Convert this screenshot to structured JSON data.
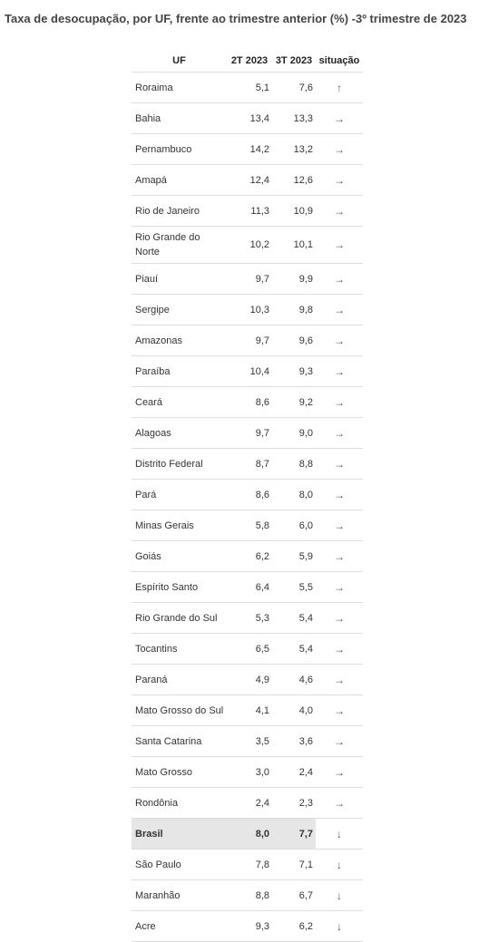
{
  "header": {
    "title": "Taxa de desocupação, por UF, frente ao trimestre anterior (%) -3º trimestre de 2023"
  },
  "table": {
    "headers": [
      "UF",
      "2T 2023",
      "3T 2023",
      "situação"
    ],
    "rows": [
      {
        "cells": [
          "Roraima",
          "5,1",
          "7,6",
          "↑"
        ]
      },
      {
        "cells": [
          "Bahia",
          "13,4",
          "13,3",
          "→"
        ]
      },
      {
        "cells": [
          "Pernambuco",
          "14,2",
          "13,2",
          "→"
        ]
      },
      {
        "cells": [
          "Amapá",
          "12,4",
          "12,6",
          "→"
        ]
      },
      {
        "cells": [
          "Rio de Janeiro",
          "11,3",
          "10,9",
          "→"
        ]
      },
      {
        "cells": [
          "Rio Grande do Norte",
          "10,2",
          "10,1",
          "→"
        ]
      },
      {
        "cells": [
          "Piauí",
          "9,7",
          "9,9",
          "→"
        ]
      },
      {
        "cells": [
          "Sergipe",
          "10,3",
          "9,8",
          "→"
        ]
      },
      {
        "cells": [
          "Amazonas",
          "9,7",
          "9,6",
          "→"
        ]
      },
      {
        "cells": [
          "Paraíba",
          "10,4",
          "9,3",
          "→"
        ]
      },
      {
        "cells": [
          "Ceará",
          "8,6",
          "9,2",
          "→"
        ]
      },
      {
        "cells": [
          "Alagoas",
          "9,7",
          "9,0",
          "→"
        ]
      },
      {
        "cells": [
          "Distrito Federal",
          "8,7",
          "8,8",
          "→"
        ]
      },
      {
        "cells": [
          "Pará",
          "8,6",
          "8,0",
          "→"
        ]
      },
      {
        "cells": [
          "Minas Gerais",
          "5,8",
          "6,0",
          "→"
        ]
      },
      {
        "cells": [
          "Goiás",
          "6,2",
          "5,9",
          "→"
        ]
      },
      {
        "cells": [
          "Espírito Santo",
          "6,4",
          "5,5",
          "→"
        ]
      },
      {
        "cells": [
          "Rio Grande do Sul",
          "5,3",
          "5,4",
          "→"
        ]
      },
      {
        "cells": [
          "Tocantins",
          "6,5",
          "5,4",
          "→"
        ]
      },
      {
        "cells": [
          "Paraná",
          "4,9",
          "4,6",
          "→"
        ]
      },
      {
        "cells": [
          "Mato Grosso do Sul",
          "4,1",
          "4,0",
          "→"
        ]
      },
      {
        "cells": [
          "Santa Catarina",
          "3,5",
          "3,6",
          "→"
        ]
      },
      {
        "cells": [
          "Mato Grosso",
          "3,0",
          "2,4",
          "→"
        ]
      },
      {
        "cells": [
          "Rondônia",
          "2,4",
          "2,3",
          "→"
        ]
      },
      {
        "cells": [
          "Brasil",
          "8,0",
          "7,7",
          "↓"
        ],
        "highlighted": true
      },
      {
        "cells": [
          "São Paulo",
          "7,8",
          "7,1",
          "↓"
        ]
      },
      {
        "cells": [
          "Maranhão",
          "8,8",
          "6,7",
          "↓"
        ]
      },
      {
        "cells": [
          "Acre",
          "9,3",
          "6,2",
          "↓"
        ]
      }
    ]
  }
}
